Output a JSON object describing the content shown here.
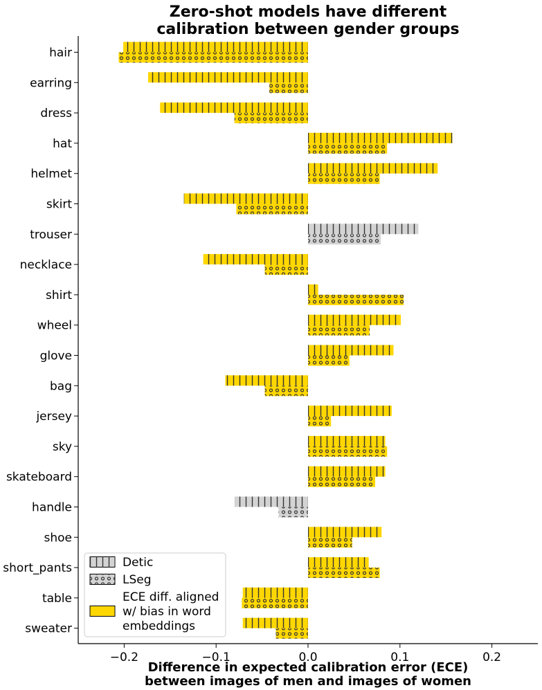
{
  "chart_data": {
    "type": "bar",
    "orientation": "horizontal",
    "title": [
      "Zero-shot models have different",
      "calibration between gender groups"
    ],
    "xlabel": [
      "Difference in expected calibration error (ECE)",
      "between images of men and images of women"
    ],
    "ylabel": "",
    "xlim": [
      -0.25,
      0.25
    ],
    "xticks": [
      -0.2,
      -0.1,
      0.0,
      0.1,
      0.2
    ],
    "xtick_labels": [
      "−0.2",
      "−0.1",
      "0.0",
      "0.1",
      "0.2"
    ],
    "grid": false,
    "legend_position": "bottom-left",
    "colors": {
      "aligned": "#FFD700",
      "not_aligned": "#D3D3D3",
      "edge": "#000000"
    },
    "categories": [
      "hair",
      "earring",
      "dress",
      "hat",
      "helmet",
      "skirt",
      "trouser",
      "necklace",
      "shirt",
      "wheel",
      "glove",
      "bag",
      "jersey",
      "sky",
      "skateboard",
      "handle",
      "shoe",
      "short_pants",
      "table",
      "sweater"
    ],
    "series": [
      {
        "name": "Detic",
        "hatch": "vertical-lines",
        "values": [
          -0.201,
          -0.174,
          -0.161,
          0.157,
          0.141,
          -0.135,
          0.12,
          -0.114,
          0.011,
          0.101,
          0.093,
          -0.09,
          0.091,
          0.084,
          0.084,
          -0.08,
          0.08,
          0.066,
          -0.071,
          -0.071
        ],
        "aligned": [
          true,
          true,
          true,
          true,
          true,
          true,
          false,
          true,
          true,
          true,
          true,
          true,
          true,
          true,
          true,
          false,
          true,
          true,
          true,
          true
        ]
      },
      {
        "name": "LSeg",
        "hatch": "dots",
        "values": [
          -0.206,
          -0.042,
          -0.08,
          0.086,
          0.078,
          -0.078,
          0.079,
          -0.047,
          0.104,
          0.067,
          0.045,
          -0.047,
          0.025,
          0.086,
          0.073,
          -0.032,
          0.048,
          0.078,
          -0.072,
          -0.035
        ],
        "aligned": [
          true,
          true,
          true,
          true,
          true,
          true,
          false,
          true,
          true,
          true,
          true,
          true,
          true,
          true,
          true,
          false,
          true,
          true,
          true,
          true
        ]
      }
    ],
    "legend": [
      {
        "label": "Detic",
        "swatch": "detic"
      },
      {
        "label": "LSeg",
        "swatch": "lseg"
      },
      {
        "label": [
          "ECE diff. aligned",
          "w/ bias in word",
          "embeddings"
        ],
        "swatch": "aligned"
      }
    ]
  }
}
